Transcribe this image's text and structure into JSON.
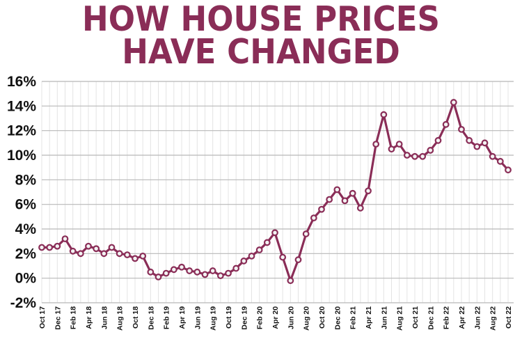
{
  "title": {
    "line1": "HOW HOUSE PRICES",
    "line2": "HAVE CHANGED"
  },
  "colors": {
    "title": "#8a2d57",
    "line": "#8a2d57",
    "marker_fill": "#f2f2f2",
    "grid_major": "#b8b8b8",
    "grid_minor": "#e4e4e4"
  },
  "chart_data": {
    "type": "line",
    "title": "HOW HOUSE PRICES HAVE CHANGED",
    "xlabel": "",
    "ylabel": "",
    "ylim": [
      -2,
      16
    ],
    "yticks": [
      -2,
      0,
      2,
      4,
      6,
      8,
      10,
      12,
      14,
      16
    ],
    "ytick_labels": [
      "-2%",
      "0%",
      "2%",
      "4%",
      "6%",
      "8%",
      "10%",
      "12%",
      "14%",
      "16%"
    ],
    "grid": true,
    "legend": "none",
    "x_tick_labels": [
      "Oct 17",
      "Dec 17",
      "Feb 18",
      "Apr 18",
      "Jun 18",
      "Aug 18",
      "Oct 18",
      "Dec 18",
      "Feb 19",
      "Apr 19",
      "Jun 19",
      "Aug 19",
      "Oct 19",
      "Dec 19",
      "Feb 20",
      "Apr 20",
      "Jun 20",
      "Aug 20",
      "Oct 20",
      "Dec 20",
      "Feb 21",
      "Apr 21",
      "Jun 21",
      "Aug 21",
      "Oct 21",
      "Dec 21",
      "Feb 22",
      "Apr 22",
      "Jun 22",
      "Aug 22",
      "Oct 22"
    ],
    "months": [
      "Oct 17",
      "Nov 17",
      "Dec 17",
      "Jan 18",
      "Feb 18",
      "Mar 18",
      "Apr 18",
      "May 18",
      "Jun 18",
      "Jul 18",
      "Aug 18",
      "Sep 18",
      "Oct 18",
      "Nov 18",
      "Dec 18",
      "Jan 19",
      "Feb 19",
      "Mar 19",
      "Apr 19",
      "May 19",
      "Jun 19",
      "Jul 19",
      "Aug 19",
      "Sep 19",
      "Oct 19",
      "Nov 19",
      "Dec 19",
      "Jan 20",
      "Feb 20",
      "Mar 20",
      "Apr 20",
      "May 20",
      "Jun 20",
      "Jul 20",
      "Aug 20",
      "Sep 20",
      "Oct 20",
      "Nov 20",
      "Dec 20",
      "Jan 21",
      "Feb 21",
      "Mar 21",
      "Apr 21",
      "May 21",
      "Jun 21",
      "Jul 21",
      "Aug 21",
      "Sep 21",
      "Oct 21",
      "Nov 21",
      "Dec 21",
      "Jan 22",
      "Feb 22",
      "Mar 22",
      "Apr 22",
      "May 22",
      "Jun 22",
      "Jul 22",
      "Aug 22",
      "Sep 22",
      "Oct 22"
    ],
    "values": [
      2.5,
      2.5,
      2.6,
      3.2,
      2.2,
      2.0,
      2.6,
      2.4,
      2.0,
      2.5,
      2.0,
      1.9,
      1.6,
      1.8,
      0.5,
      0.1,
      0.4,
      0.7,
      0.9,
      0.6,
      0.5,
      0.3,
      0.6,
      0.2,
      0.4,
      0.8,
      1.4,
      1.8,
      2.3,
      2.9,
      3.7,
      1.7,
      -0.2,
      1.5,
      3.6,
      4.9,
      5.6,
      6.4,
      7.2,
      6.3,
      6.9,
      5.7,
      7.1,
      10.9,
      13.3,
      10.5,
      10.9,
      10.0,
      9.9,
      9.9,
      10.4,
      11.2,
      12.5,
      14.3,
      12.1,
      11.2,
      10.7,
      11.0,
      9.9,
      9.5,
      8.8
    ]
  }
}
